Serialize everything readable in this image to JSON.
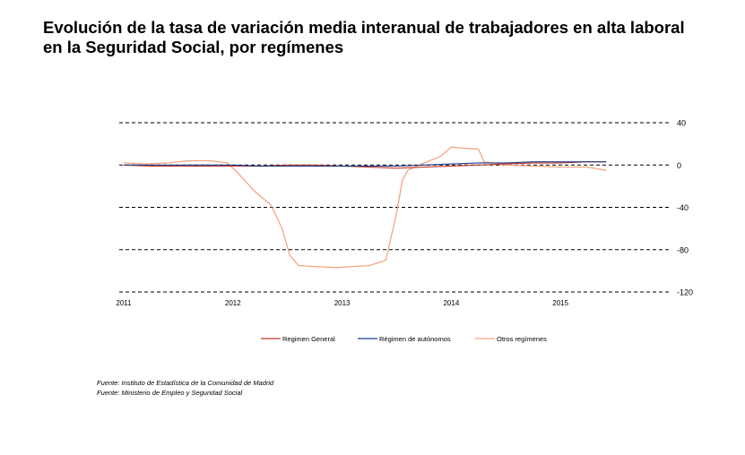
{
  "title_lines": [
    "Evolución de la tasa de variación media interanual de trabajadores en alta laboral",
    "en la Seguridad Social, por  regímenes"
  ],
  "chart_data": {
    "type": "line",
    "title": "",
    "xlabel": "",
    "ylabel": "",
    "ylim": [
      -120,
      40
    ],
    "xlim": [
      2011.0,
      2016.0
    ],
    "yticks": [
      40,
      0,
      -40,
      -80,
      -120
    ],
    "xticks": [
      2011,
      2012,
      2013,
      2014,
      2015
    ],
    "grid": "horizontal dashed",
    "legend_position": "bottom",
    "series": [
      {
        "name": "Regimen General",
        "color": "#c0392b",
        "x": [
          2011.0,
          2011.25,
          2011.5,
          2011.75,
          2012.0,
          2012.25,
          2012.5,
          2012.75,
          2013.0,
          2013.25,
          2013.5,
          2013.75,
          2014.0,
          2014.25,
          2014.5,
          2014.75,
          2015.0,
          2015.25,
          2015.42
        ],
        "values": [
          0,
          -1,
          -1,
          -1,
          -1,
          -1,
          0,
          0,
          -1,
          -2,
          -3,
          -2,
          -1,
          0,
          1,
          2,
          2,
          3,
          3
        ]
      },
      {
        "name": "Régimen de autónomos",
        "color": "#1f3b8c",
        "x": [
          2011.0,
          2011.25,
          2011.5,
          2011.75,
          2012.0,
          2012.25,
          2012.5,
          2012.75,
          2013.0,
          2013.25,
          2013.5,
          2013.75,
          2014.0,
          2014.25,
          2014.5,
          2014.75,
          2015.0,
          2015.25,
          2015.42
        ],
        "values": [
          0,
          0,
          0,
          0,
          0,
          -1,
          -1,
          -1,
          -1,
          -1,
          -1,
          0,
          1,
          2,
          2,
          3,
          3,
          3,
          3
        ]
      },
      {
        "name": "Otros regímenes",
        "color": "#f4a582",
        "x": [
          2011.0,
          2011.2,
          2011.4,
          2011.6,
          2011.8,
          2011.95,
          2012.05,
          2012.2,
          2012.35,
          2012.45,
          2012.52,
          2012.6,
          2012.75,
          2012.95,
          2013.1,
          2013.25,
          2013.4,
          2013.5,
          2013.55,
          2013.6,
          2013.75,
          2013.9,
          2014.0,
          2014.1,
          2014.25,
          2014.3,
          2014.5,
          2014.75,
          2015.0,
          2015.25,
          2015.42
        ],
        "values": [
          2,
          1,
          2,
          4,
          4,
          2,
          -8,
          -25,
          -38,
          -60,
          -85,
          -95,
          -96,
          -97,
          -96,
          -95,
          -90,
          -45,
          -15,
          -5,
          2,
          8,
          17,
          16,
          15,
          3,
          0,
          -1,
          -2,
          -2,
          -5
        ]
      }
    ]
  },
  "sources": [
    "Fuente: Instituto de Estadística de la Comunidad de Madrid",
    "Fuente: Ministerio de Empleo y Seguridad Social"
  ]
}
